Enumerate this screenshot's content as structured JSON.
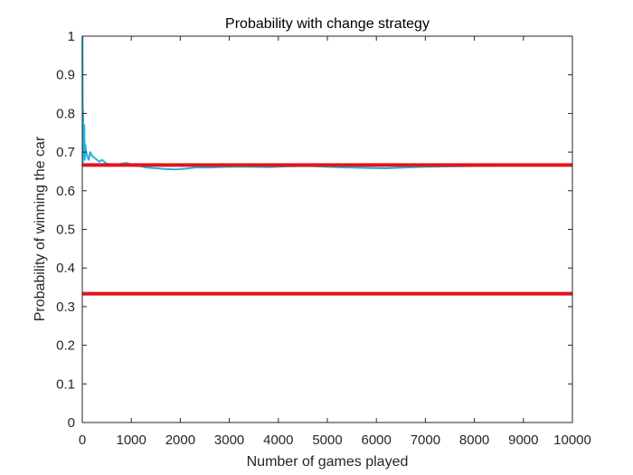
{
  "chart_data": {
    "type": "line",
    "title": "Probability with change strategy",
    "xlabel": "Number of games played",
    "ylabel": "Probability of winning the car",
    "xlim": [
      0,
      10000
    ],
    "ylim": [
      0,
      1
    ],
    "x_ticks": [
      "0",
      "1000",
      "2000",
      "3000",
      "4000",
      "5000",
      "6000",
      "7000",
      "8000",
      "9000",
      "10000"
    ],
    "y_ticks": [
      "0",
      "0.1",
      "0.2",
      "0.3",
      "0.4",
      "0.5",
      "0.6",
      "0.7",
      "0.8",
      "0.9",
      "1"
    ],
    "grid": false,
    "legend": "none",
    "series": [
      {
        "kind": "running-probability",
        "color": "#1fb3e0",
        "x": [
          1,
          5,
          10,
          15,
          20,
          30,
          40,
          50,
          60,
          80,
          100,
          130,
          160,
          200,
          250,
          300,
          350,
          400,
          500,
          600,
          700,
          800,
          900,
          1000,
          1100,
          1200,
          1300,
          1500,
          1700,
          1900,
          2100,
          2300,
          2600,
          3000,
          3400,
          3800,
          4200,
          4600,
          5000,
          5400,
          5800,
          6200,
          6600,
          7000,
          7500,
          8000,
          8500,
          9000,
          9500,
          10000
        ],
        "y": [
          1.0,
          1.0,
          0.67,
          0.81,
          0.7,
          0.73,
          0.77,
          0.68,
          0.72,
          0.7,
          0.69,
          0.68,
          0.7,
          0.69,
          0.685,
          0.68,
          0.675,
          0.68,
          0.67,
          0.668,
          0.665,
          0.67,
          0.672,
          0.668,
          0.664,
          0.663,
          0.66,
          0.658,
          0.656,
          0.655,
          0.657,
          0.66,
          0.66,
          0.662,
          0.662,
          0.661,
          0.663,
          0.664,
          0.662,
          0.66,
          0.659,
          0.658,
          0.66,
          0.662,
          0.663,
          0.664,
          0.665,
          0.666,
          0.665,
          0.666
        ]
      },
      {
        "kind": "reference-line",
        "color": "#e3141c",
        "x": [
          0,
          10000
        ],
        "y": [
          0.6667,
          0.6667
        ]
      },
      {
        "kind": "reference-line",
        "color": "#e3141c",
        "x": [
          0,
          10000
        ],
        "y": [
          0.3333,
          0.3333
        ]
      }
    ]
  }
}
